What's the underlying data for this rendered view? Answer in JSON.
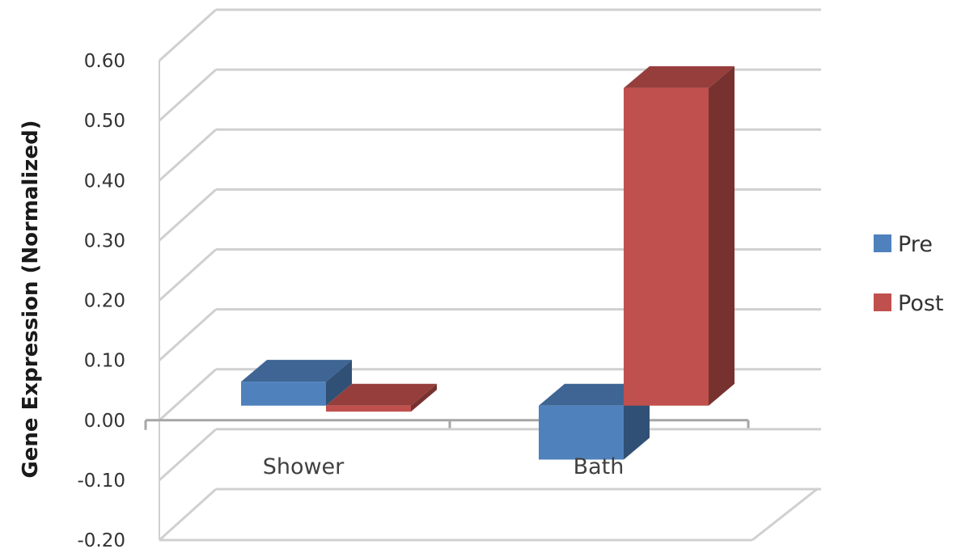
{
  "chart_data": {
    "type": "bar",
    "style": "3d-clustered-column",
    "categories": [
      "Shower",
      "Bath"
    ],
    "series": [
      {
        "name": "Pre",
        "values": [
          0.04,
          -0.09
        ],
        "color": "#4f81bd"
      },
      {
        "name": "Post",
        "values": [
          -0.01,
          0.53
        ],
        "color": "#c0504d"
      }
    ],
    "ylabel": "Gene Expression (Normalized)",
    "ylim": [
      -0.2,
      0.6
    ],
    "yticks": [
      "0.60",
      "0.50",
      "0.40",
      "0.30",
      "0.20",
      "0.10",
      "0.00",
      "-0.10",
      "-0.20"
    ],
    "grid": true,
    "legend": "right"
  }
}
